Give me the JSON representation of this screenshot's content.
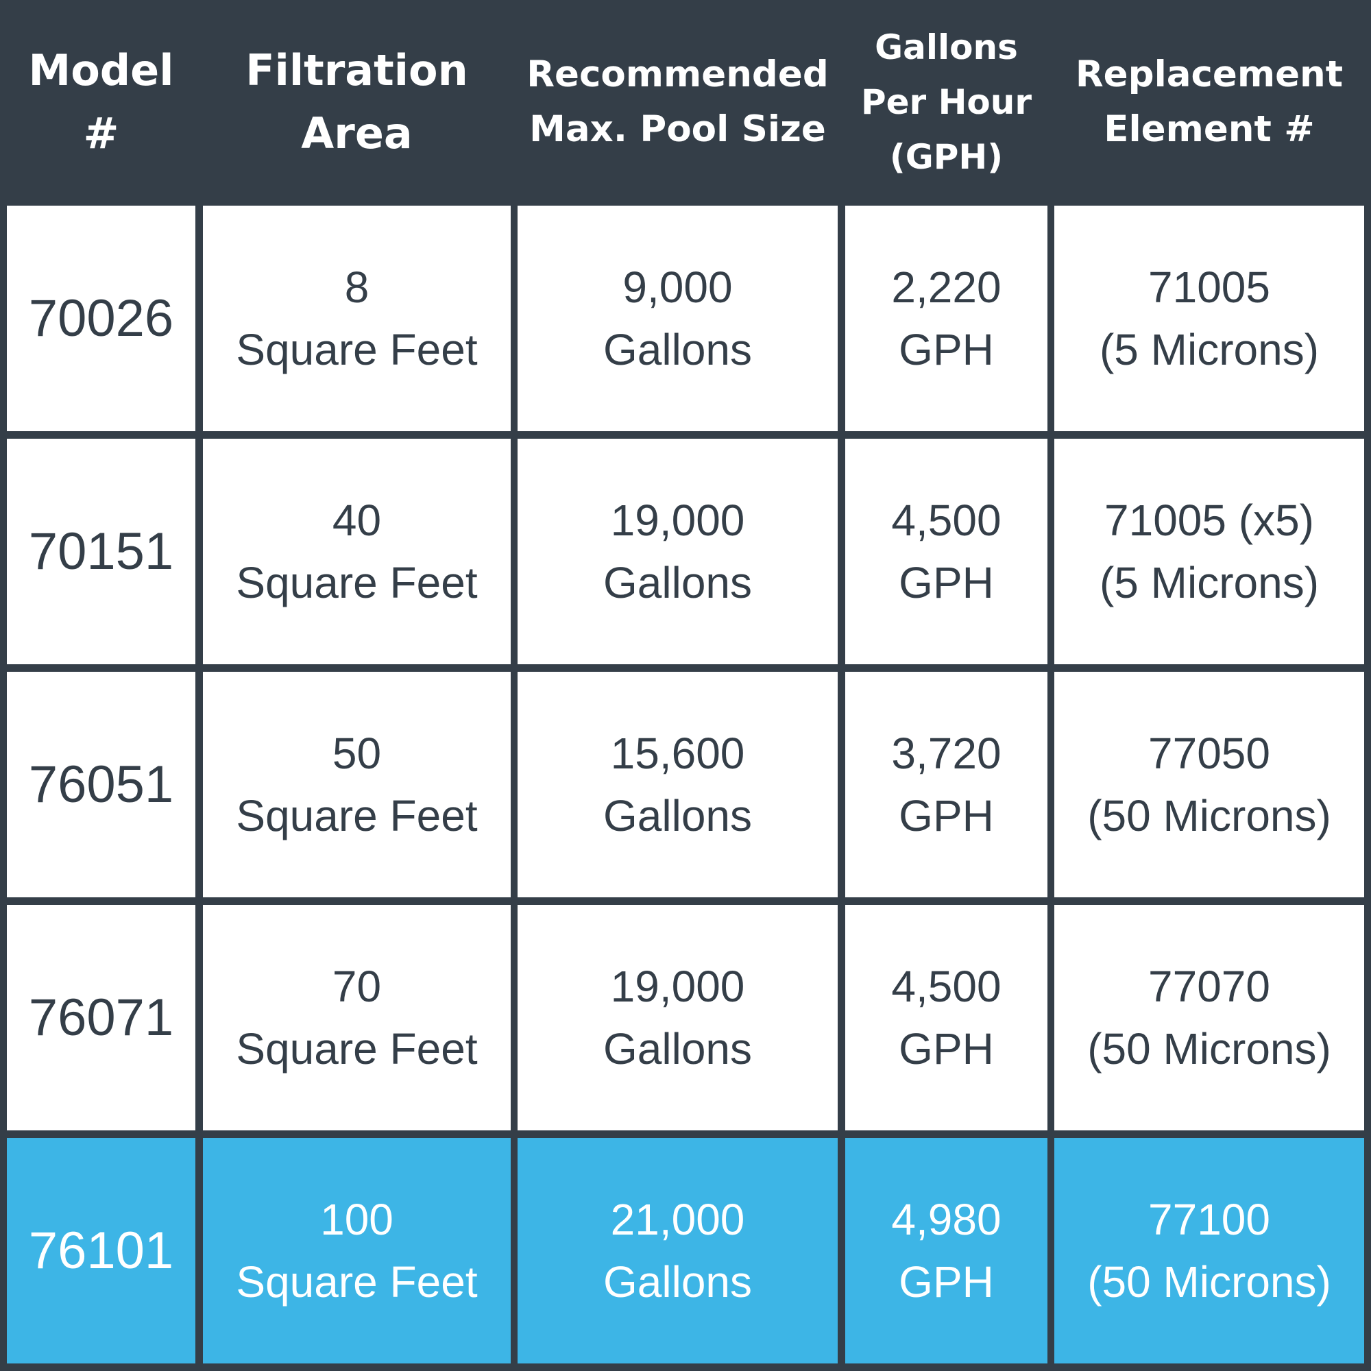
{
  "colors": {
    "header_bg": "#343e48",
    "cell_bg": "#ffffff",
    "cell_text": "#343e48",
    "highlight_bg": "#3db5e6",
    "highlight_text": "#ffffff"
  },
  "headers": [
    [
      "Model",
      "#"
    ],
    [
      "Filtration",
      "Area"
    ],
    [
      "Recommended",
      "Max. Pool Size"
    ],
    [
      "Gallons",
      "Per Hour",
      "(GPH)"
    ],
    [
      "Replacement",
      "Element #"
    ]
  ],
  "rows": [
    {
      "model": "70026",
      "area": [
        "8",
        "Square Feet"
      ],
      "pool": [
        "9,000",
        "Gallons"
      ],
      "gph": [
        "2,220",
        "GPH"
      ],
      "element": [
        "71005",
        "(5 Microns)"
      ]
    },
    {
      "model": "70151",
      "area": [
        "40",
        "Square Feet"
      ],
      "pool": [
        "19,000",
        "Gallons"
      ],
      "gph": [
        "4,500",
        "GPH"
      ],
      "element": [
        "71005 (x5)",
        "(5 Microns)"
      ]
    },
    {
      "model": "76051",
      "area": [
        "50",
        "Square Feet"
      ],
      "pool": [
        "15,600",
        "Gallons"
      ],
      "gph": [
        "3,720",
        "GPH"
      ],
      "element": [
        "77050",
        "(50 Microns)"
      ]
    },
    {
      "model": "76071",
      "area": [
        "70",
        "Square Feet"
      ],
      "pool": [
        "19,000",
        "Gallons"
      ],
      "gph": [
        "4,500",
        "GPH"
      ],
      "element": [
        "77070",
        "(50 Microns)"
      ]
    },
    {
      "model": "76101",
      "area": [
        "100",
        "Square Feet"
      ],
      "pool": [
        "21,000",
        "Gallons"
      ],
      "gph": [
        "4,980",
        "GPH"
      ],
      "element": [
        "77100",
        "(50 Microns)"
      ]
    }
  ]
}
